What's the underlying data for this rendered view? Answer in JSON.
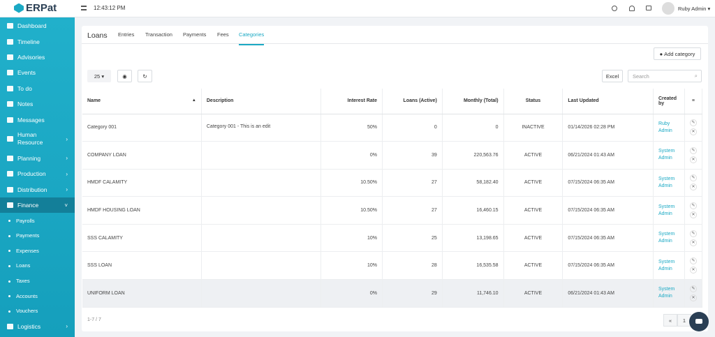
{
  "header": {
    "logo": "ERPat",
    "time": "12:43:12 PM",
    "user": "Ruby Admin"
  },
  "sidebar": {
    "items": [
      {
        "label": "Dashboard"
      },
      {
        "label": "Timeline"
      },
      {
        "label": "Advisories"
      },
      {
        "label": "Events"
      },
      {
        "label": "To do"
      },
      {
        "label": "Notes"
      },
      {
        "label": "Messages"
      },
      {
        "label": "Human Resource",
        "arrow": true
      },
      {
        "label": "Planning",
        "arrow": true
      },
      {
        "label": "Production",
        "arrow": true
      },
      {
        "label": "Distribution",
        "arrow": true
      },
      {
        "label": "Finance",
        "arrow": true,
        "expanded": true
      },
      {
        "label": "Payrolls",
        "sub": true
      },
      {
        "label": "Payments",
        "sub": true
      },
      {
        "label": "Expenses",
        "sub": true
      },
      {
        "label": "Loans",
        "sub": true
      },
      {
        "label": "Taxes",
        "sub": true
      },
      {
        "label": "Accounts",
        "sub": true
      },
      {
        "label": "Vouchers",
        "sub": true
      },
      {
        "label": "Logistics",
        "arrow": true
      }
    ]
  },
  "page": {
    "title": "Loans",
    "tabs": [
      "Entries",
      "Transaction",
      "Payments",
      "Fees",
      "Categories"
    ],
    "active_tab": 4
  },
  "toolbar": {
    "add_button": "Add category",
    "page_size": "25",
    "excel": "Excel",
    "search": "Search"
  },
  "table": {
    "columns": [
      "Name",
      "Description",
      "Interest Rate",
      "Loans (Active)",
      "Monthly (Total)",
      "Status",
      "Last Updated",
      "Created by"
    ],
    "rows": [
      [
        "Category 001",
        "Category 001 - This is an edit",
        "50%",
        "0",
        "0",
        "INACTIVE",
        "01/14/2026 02:28 PM",
        "Ruby Admin"
      ],
      [
        "COMPANY LOAN",
        "",
        "0%",
        "39",
        "220,563.76",
        "ACTIVE",
        "06/21/2024 01:43 AM",
        "System Admin"
      ],
      [
        "HMDF CALAMITY",
        "",
        "10.50%",
        "27",
        "58,182.40",
        "ACTIVE",
        "07/15/2024 06:35 AM",
        "System Admin"
      ],
      [
        "HMDF HOUSING LOAN",
        "",
        "10.50%",
        "27",
        "16,460.15",
        "ACTIVE",
        "07/15/2024 06:35 AM",
        "System Admin"
      ],
      [
        "SSS CALAMITY",
        "",
        "10%",
        "25",
        "13,198.65",
        "ACTIVE",
        "07/15/2024 06:35 AM",
        "System Admin"
      ],
      [
        "SSS LOAN",
        "",
        "10%",
        "28",
        "16,535.58",
        "ACTIVE",
        "07/15/2024 06:35 AM",
        "System Admin"
      ],
      [
        "UNIFORM LOAN",
        "",
        "0%",
        "29",
        "11,746.10",
        "ACTIVE",
        "06/21/2024 01:43 AM",
        "System Admin"
      ]
    ]
  },
  "footer": {
    "info": "1-7 / 7",
    "pages": [
      "«",
      "1"
    ]
  }
}
